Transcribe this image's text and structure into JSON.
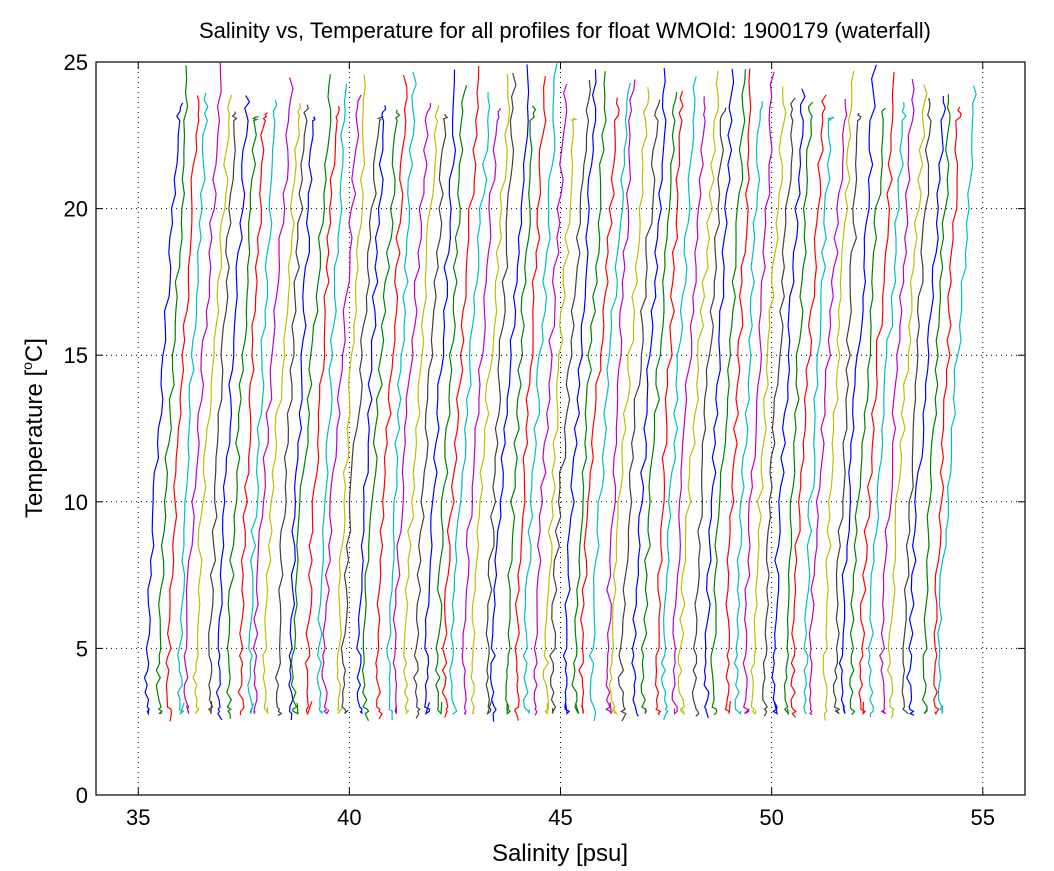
{
  "chart_data": {
    "type": "line",
    "title": "Salinity vs, Temperature for all profiles for float WMOId: 1900179 (waterfall)",
    "xlabel": "Salinity [psu]",
    "ylabel": {
      "prefix": "Temperature [",
      "superscript": "o",
      "suffix": "C]"
    },
    "xlim": [
      34,
      56
    ],
    "ylim": [
      0,
      25
    ],
    "xticks": [
      35,
      40,
      45,
      50,
      55
    ],
    "yticks": [
      0,
      5,
      10,
      15,
      20,
      25
    ],
    "grid": true,
    "grid_style": "dotted",
    "series_colors": [
      "#0000ff",
      "#008000",
      "#ff0000",
      "#00bfbf",
      "#bf00bf",
      "#bfbf00",
      "#404040"
    ],
    "profile_temperature": [
      25,
      23,
      21,
      19,
      17,
      15,
      13,
      11,
      9,
      7,
      5,
      4,
      3,
      2.7
    ],
    "profile_shape": [
      0.35,
      0.3,
      0.24,
      0.16,
      0.08,
      0.0,
      -0.08,
      -0.16,
      -0.24,
      -0.3,
      -0.34,
      -0.36,
      -0.33,
      -0.3
    ],
    "waterfall": {
      "profiles": 81,
      "first_surface_salinity": 35.6,
      "offset_per_profile": 0.235,
      "deep_temperature_min": 2.5,
      "deep_temperature_max": 3.2,
      "top_temperature_min": 23.0,
      "top_temperature_max": 25.0
    }
  }
}
